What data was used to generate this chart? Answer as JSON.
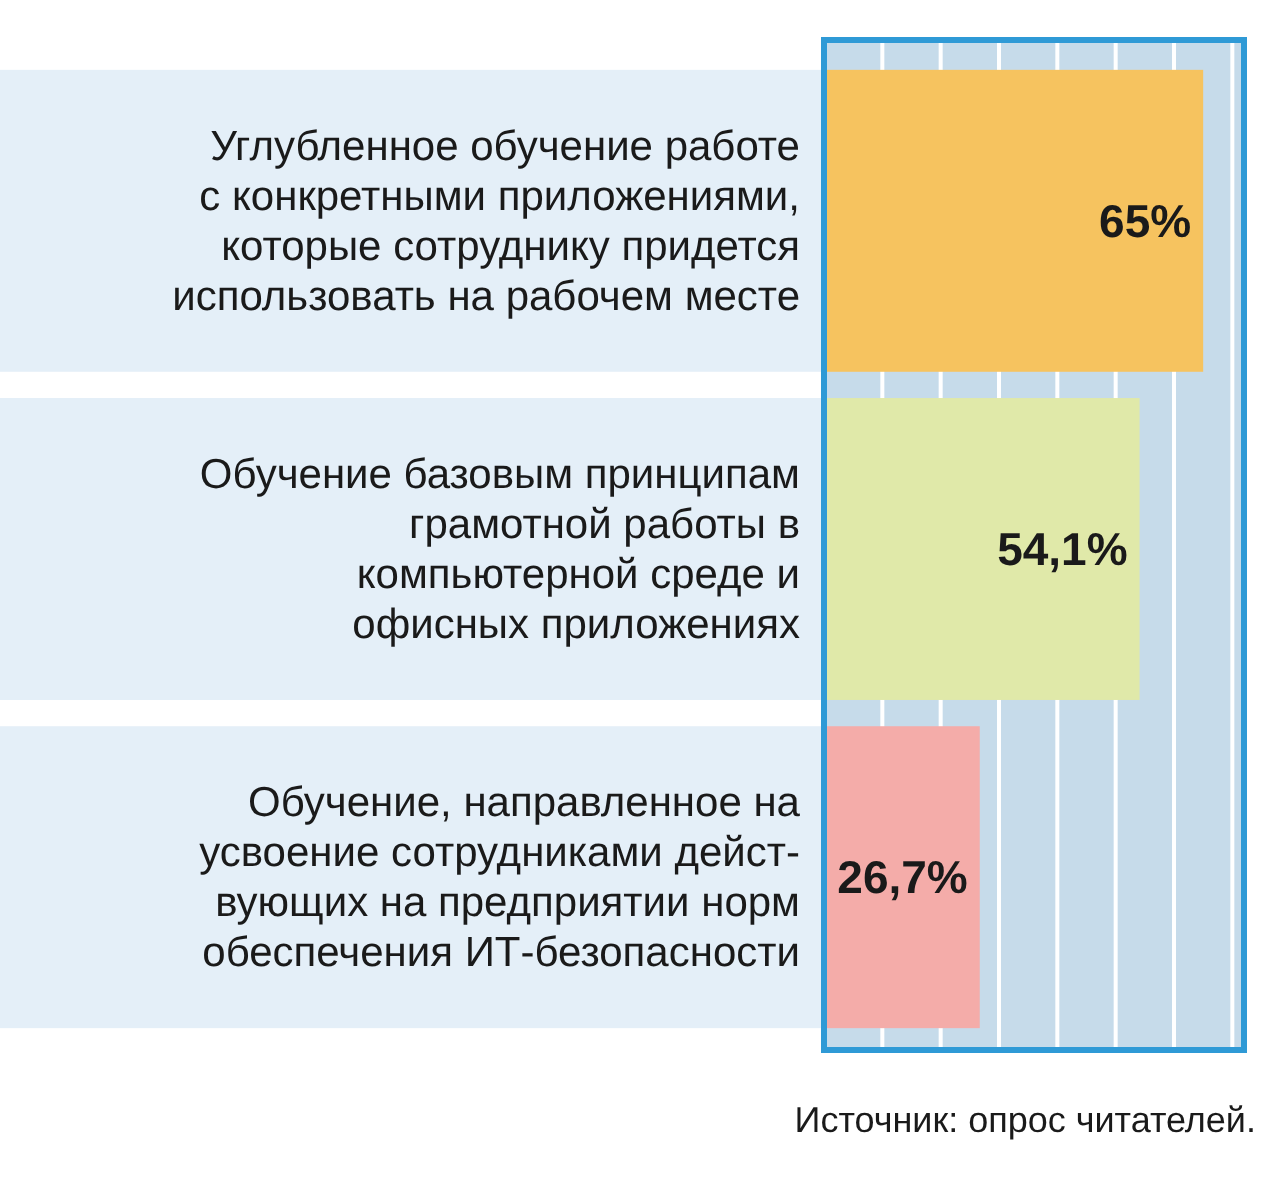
{
  "chart_data": {
    "type": "bar",
    "orientation": "horizontal",
    "categories": [
      "Углубленное обучение работе\nс конкретными приложениями,\nкоторые сотруднику придется\nиспользовать на рабочем месте",
      "Обучение базовым принципам\nграмотной работы в\nкомпьютерной среде и\nофисных приложениях",
      "Обучение, направленное на\nусвоение сотрудниками дейст-\nвующих на предприятии норм\nобеспечения ИТ-безопасности"
    ],
    "values": [
      65,
      54.1,
      26.7
    ],
    "value_labels": [
      "65%",
      "54,1%",
      "26,7%"
    ],
    "colors": [
      "#f6c35f",
      "#e0e9a9",
      "#f4aca9"
    ],
    "xlim": [
      0,
      72
    ],
    "xticks": [
      {
        "value": 10,
        "label": null
      },
      {
        "value": 20,
        "label": null
      },
      {
        "value": 30,
        "label": null
      },
      {
        "value": 40,
        "label": null
      },
      {
        "value": 50,
        "label": null
      },
      {
        "value": 60,
        "label": null
      },
      {
        "value": 70,
        "label": null
      }
    ],
    "grid": "x",
    "tick_labels": "y",
    "annotations": [
      "Источник: опрос читателей."
    ]
  }
}
